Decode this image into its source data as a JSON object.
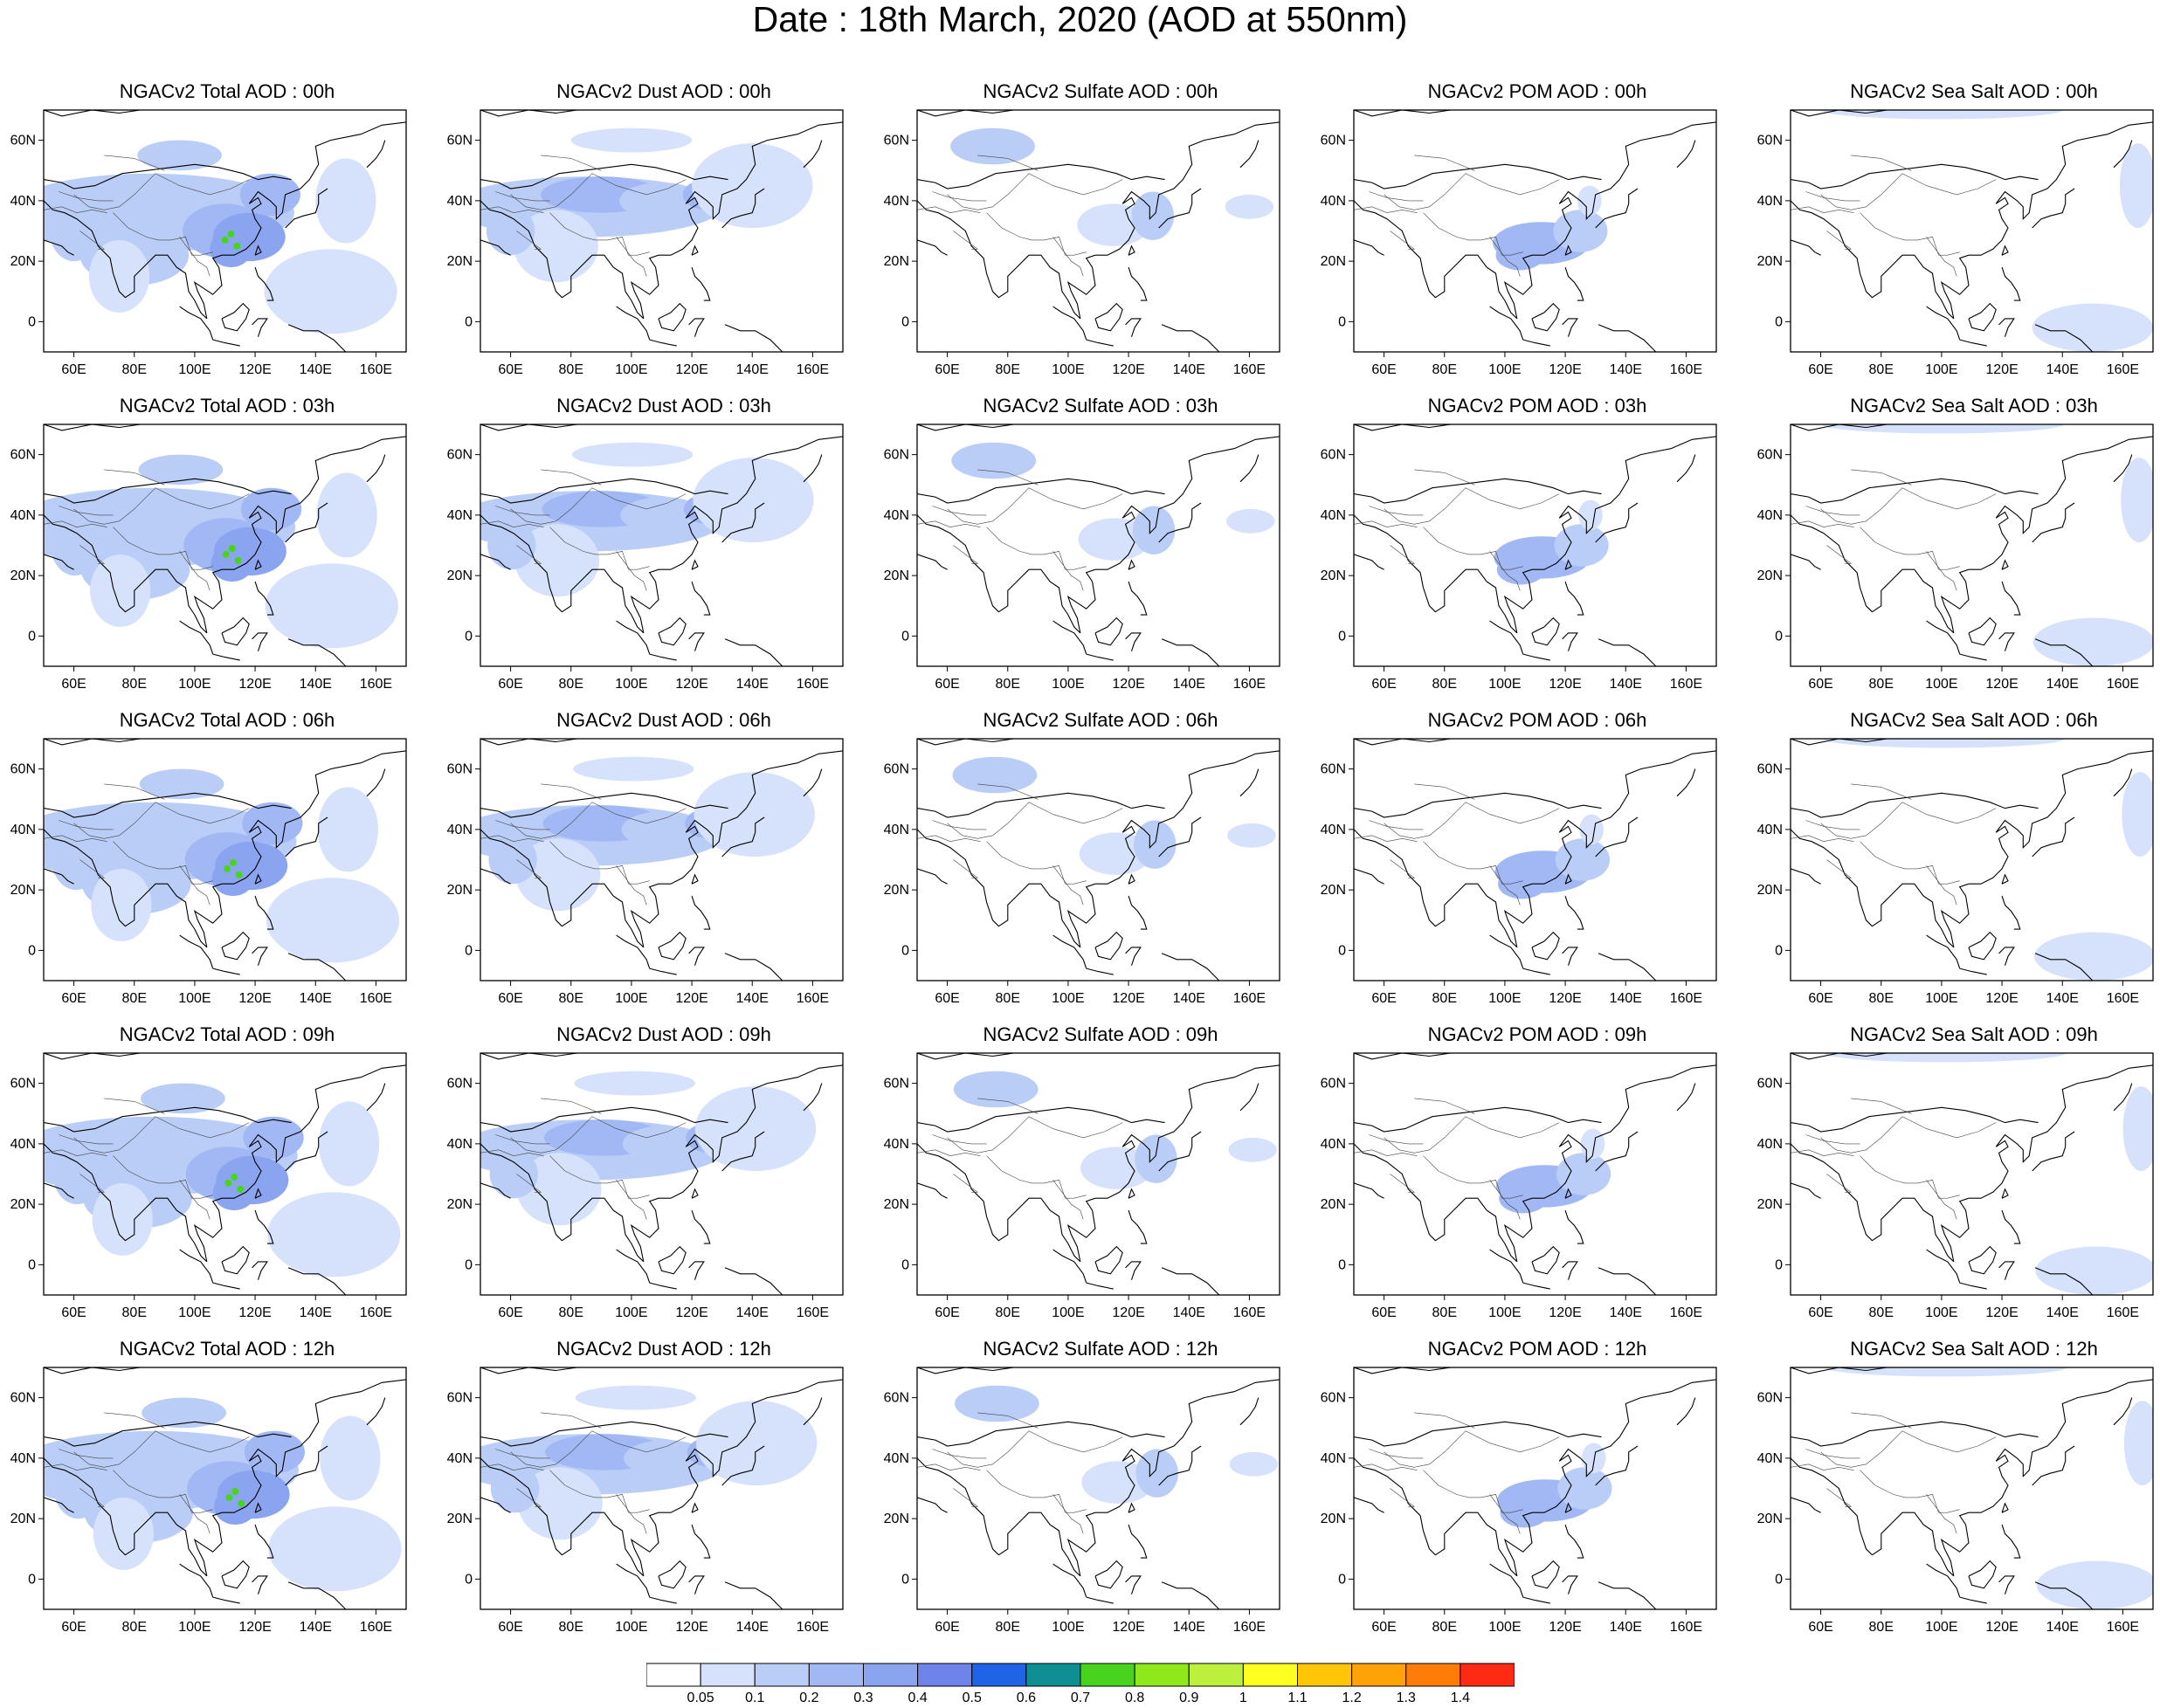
{
  "title": "Date : 18th March, 2020 (AOD at 550nm)",
  "species": [
    "Total",
    "Dust",
    "Sulfate",
    "POM",
    "SeaSalt"
  ],
  "panel_titles": [
    [
      "NGACv2 Total AOD : 00h",
      "NGACv2 Dust AOD : 00h",
      "NGACv2 Sulfate AOD : 00h",
      "NGACv2 POM AOD : 00h",
      "NGACv2 Sea Salt AOD : 00h"
    ],
    [
      "NGACv2 Total AOD : 03h",
      "NGACv2 Dust AOD : 03h",
      "NGACv2 Sulfate AOD : 03h",
      "NGACv2 POM AOD : 03h",
      "NGACv2 Sea Salt AOD : 03h"
    ],
    [
      "NGACv2 Total AOD : 06h",
      "NGACv2 Dust AOD : 06h",
      "NGACv2 Sulfate AOD : 06h",
      "NGACv2 POM AOD : 06h",
      "NGACv2 Sea Salt AOD : 06h"
    ],
    [
      "NGACv2 Total AOD : 09h",
      "NGACv2 Dust AOD : 09h",
      "NGACv2 Sulfate AOD : 09h",
      "NGACv2 POM AOD : 09h",
      "NGACv2 Sea Salt  AOD : 09h"
    ],
    [
      "NGACv2 Total AOD  : 12h",
      "NGACv2 Dust AOD : 12h",
      "NGACv2 Sulfate AOD : 12h",
      "NGACv2 POM  AOD : 12h",
      "NGACv2 Sea Salt  AOD : 12h"
    ]
  ],
  "lon_ticks": [
    "60E",
    "80E",
    "100E",
    "120E",
    "140E",
    "160E"
  ],
  "lat_ticks": [
    "60N",
    "40N",
    "20N",
    "0"
  ],
  "lon_tick_values": [
    60,
    80,
    100,
    120,
    140,
    160
  ],
  "lat_tick_values": [
    60,
    40,
    20,
    0
  ],
  "lon_range": [
    50,
    170
  ],
  "lat_range": [
    -10,
    70
  ],
  "colorbar": {
    "labels": [
      "0.05",
      "0.1",
      "0.2",
      "0.3",
      "0.4",
      "0.5",
      "0.6",
      "0.7",
      "0.8",
      "0.9",
      "1",
      "1.1",
      "1.2",
      "1.3",
      "1.4"
    ],
    "colors": [
      "#ffffff",
      "#d6e1fb",
      "#bacdf7",
      "#a1b8f4",
      "#8aa4f0",
      "#6f84ea",
      "#1f63e6",
      "#0d8f94",
      "#48d41c",
      "#8ee81a",
      "#bcf03c",
      "#ffff20",
      "#ffc608",
      "#ffa208",
      "#ff7c08",
      "#ff2a14"
    ]
  }
}
